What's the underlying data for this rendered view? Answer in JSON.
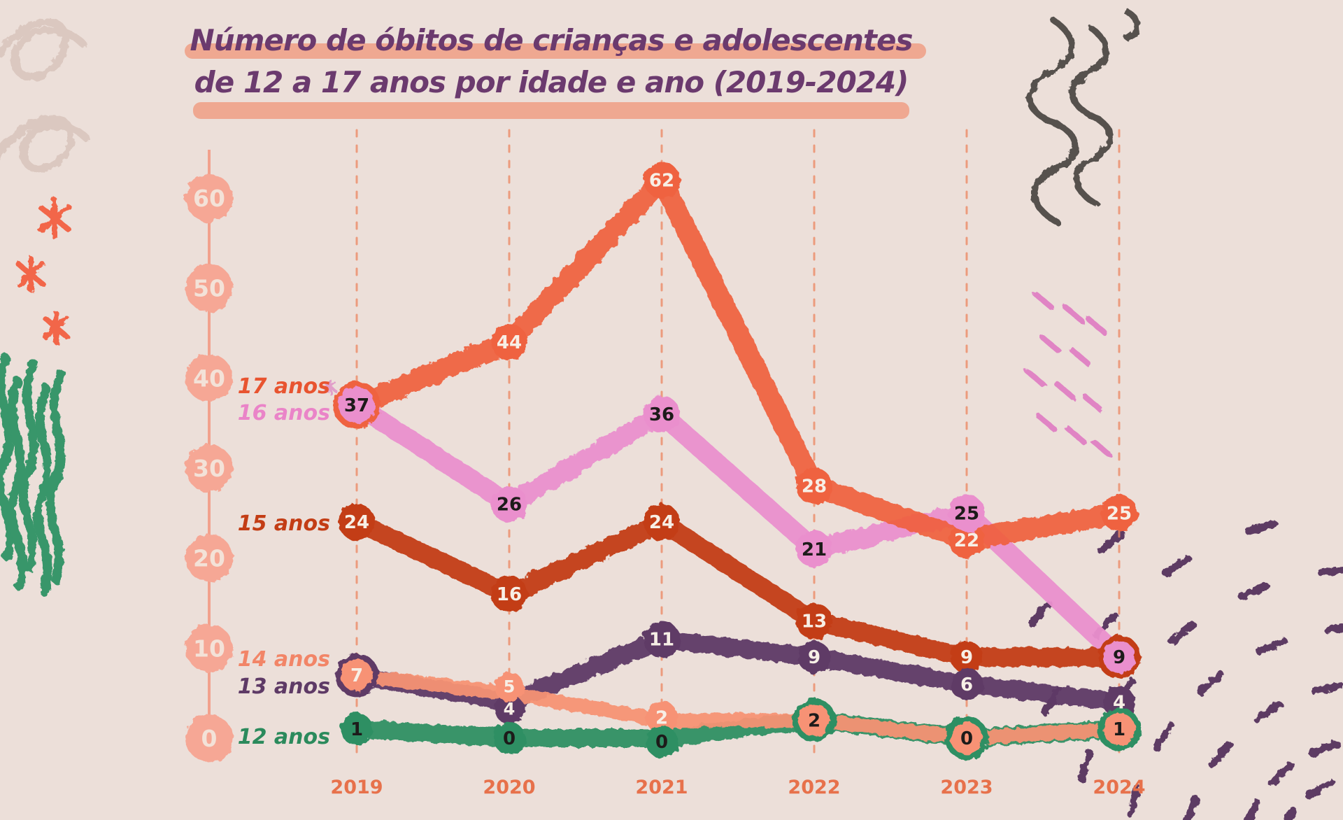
{
  "title": {
    "line1": "Número de óbitos de crianças e adolescentes",
    "line2": "de 12 a 17 anos por idade e ano (2019-2024)"
  },
  "colors": {
    "background": "#ecdfd9",
    "title_text": "#6b3a6e",
    "title_highlight": "#f09a7e",
    "axis_blob": "#f6a795",
    "axis_blob_text": "#f3e2d8",
    "axis_line": "#f2a18d",
    "gridline": "#ed8a66",
    "year_label": "#e7714b",
    "marker_text_light": "#f7efe6",
    "marker_text_dark": "#1d1b1a"
  },
  "chart_data": {
    "type": "line",
    "x": [
      "2019",
      "2020",
      "2021",
      "2022",
      "2023",
      "2024"
    ],
    "yticks": [
      0,
      10,
      20,
      30,
      40,
      50,
      60
    ],
    "ylim": [
      0,
      62
    ],
    "grid": "vertical-dashed",
    "legend_position": "left-inline",
    "series": [
      {
        "name": "17 anos",
        "color": "#ef6241",
        "label_color": "#e85430",
        "values": [
          37,
          44,
          62,
          28,
          22,
          25
        ]
      },
      {
        "name": "16 anos",
        "color": "#ea8fcd",
        "label_color": "#ea84c8",
        "values": [
          37,
          26,
          36,
          21,
          25,
          9
        ]
      },
      {
        "name": "15 anos",
        "color": "#c33d15",
        "label_color": "#c33d15",
        "values": [
          24,
          16,
          24,
          13,
          9,
          9
        ]
      },
      {
        "name": "14 anos",
        "color": "#f79274",
        "label_color": "#f28567",
        "values": [
          7,
          5,
          2,
          2,
          0,
          1
        ]
      },
      {
        "name": "13 anos",
        "color": "#5e3a66",
        "label_color": "#5e3a66",
        "values": [
          7,
          4,
          11,
          9,
          6,
          4
        ]
      },
      {
        "name": "12 anos",
        "color": "#2e8f63",
        "label_color": "#2b8a5c",
        "values": [
          1,
          0,
          0,
          2,
          0,
          1
        ]
      }
    ],
    "markers": [
      {
        "x": 0,
        "v": 37,
        "label": "37",
        "fill": "#ea8fcd",
        "ring": "#ef6241",
        "text": "#1d1b1a"
      },
      {
        "x": 0,
        "v": 24,
        "label": "24",
        "fill": "#c33d15",
        "text": "#f7efe6"
      },
      {
        "x": 0,
        "v": 7,
        "label": "7",
        "fill": "#f79274",
        "ring": "#5e3a66",
        "text": "#f7efe6"
      },
      {
        "x": 0,
        "v": 1,
        "label": "1",
        "fill": "#2e8f63",
        "text": "#1d1b1a"
      },
      {
        "x": 1,
        "v": 44,
        "label": "44",
        "fill": "#ef6241",
        "text": "#f7efe6"
      },
      {
        "x": 1,
        "v": 26,
        "label": "26",
        "fill": "#ea8fcd",
        "text": "#1d1b1a"
      },
      {
        "x": 1,
        "v": 16,
        "label": "16",
        "fill": "#c33d15",
        "text": "#f7efe6"
      },
      {
        "x": 1,
        "v": 4,
        "label": "4",
        "fill": "#5e3a66",
        "text": "#f7efe6",
        "dy": 10,
        "r": 21
      },
      {
        "x": 1,
        "v": 5,
        "label": "5",
        "fill": "#f79274",
        "text": "#f7efe6",
        "dy": -9,
        "r": 21
      },
      {
        "x": 1,
        "v": 0,
        "label": "0",
        "fill": "#2e8f63",
        "text": "#1d1b1a"
      },
      {
        "x": 2,
        "v": 62,
        "label": "62",
        "fill": "#ef6241",
        "text": "#f7efe6"
      },
      {
        "x": 2,
        "v": 36,
        "label": "36",
        "fill": "#ea8fcd",
        "text": "#1d1b1a"
      },
      {
        "x": 2,
        "v": 24,
        "label": "24",
        "fill": "#c33d15",
        "text": "#f7efe6"
      },
      {
        "x": 2,
        "v": 11,
        "label": "11",
        "fill": "#5e3a66",
        "text": "#f7efe6"
      },
      {
        "x": 2,
        "v": 2,
        "label": "2",
        "fill": "#f79274",
        "text": "#f7efe6",
        "dy": -4
      },
      {
        "x": 2,
        "v": 0,
        "label": "0",
        "fill": "#2e8f63",
        "text": "#1d1b1a",
        "dy": 5
      },
      {
        "x": 3,
        "v": 28,
        "label": "28",
        "fill": "#ef6241",
        "text": "#f7efe6"
      },
      {
        "x": 3,
        "v": 21,
        "label": "21",
        "fill": "#ea8fcd",
        "text": "#1d1b1a"
      },
      {
        "x": 3,
        "v": 13,
        "label": "13",
        "fill": "#c33d15",
        "text": "#f7efe6"
      },
      {
        "x": 3,
        "v": 9,
        "label": "9",
        "fill": "#5e3a66",
        "text": "#f7efe6"
      },
      {
        "x": 3,
        "v": 2,
        "label": "2",
        "fill": "#f79274",
        "ring": "#2e8f63",
        "text": "#1d1b1a"
      },
      {
        "x": 4,
        "v": 22,
        "label": "22",
        "fill": "#ef6241",
        "text": "#f7efe6"
      },
      {
        "x": 4,
        "v": 25,
        "label": "25",
        "fill": "#ea8fcd",
        "text": "#1d1b1a"
      },
      {
        "x": 4,
        "v": 9,
        "label": "9",
        "fill": "#c33d15",
        "text": "#f7efe6"
      },
      {
        "x": 4,
        "v": 6,
        "label": "6",
        "fill": "#5e3a66",
        "text": "#f7efe6"
      },
      {
        "x": 4,
        "v": 0,
        "label": "0",
        "fill": "#f79274",
        "ring": "#2e8f63",
        "text": "#1d1b1a"
      },
      {
        "x": 5,
        "v": 25,
        "label": "25",
        "fill": "#ef6241",
        "text": "#f7efe6"
      },
      {
        "x": 5,
        "v": 9,
        "label": "9",
        "fill": "#ea8fcd",
        "ring": "#c33d15",
        "text": "#1d1b1a"
      },
      {
        "x": 5,
        "v": 4,
        "label": "4",
        "fill": "#5e3a66",
        "text": "#f7efe6"
      },
      {
        "x": 5,
        "v": 1,
        "label": "1",
        "fill": "#f79274",
        "ring": "#2e8f63",
        "text": "#1d1b1a"
      }
    ]
  }
}
